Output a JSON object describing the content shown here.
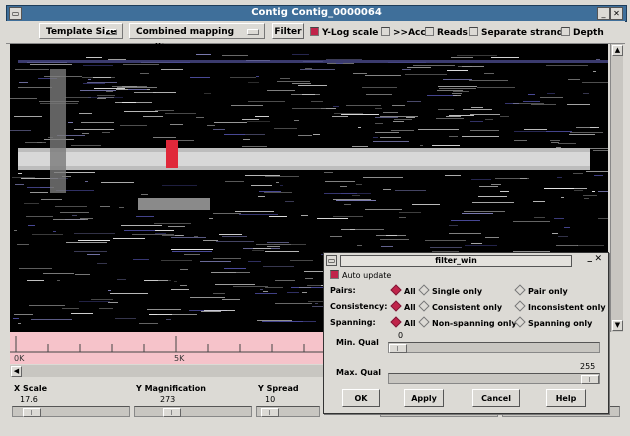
{
  "window": {
    "title": "Contig Contig_0000064"
  },
  "toolbar": {
    "template_size": "Template Size",
    "mapping_quality": "Combined mapping quality",
    "filter": "Filter",
    "ylog": "Y-Log scale",
    "acc": ">>Acc",
    "reads": "Reads",
    "separate_strands": "Separate strands",
    "depth": "Depth"
  },
  "ruler": {
    "labels": [
      "0K",
      "5K"
    ]
  },
  "scales": {
    "xscale": {
      "label": "X Scale",
      "value": "17.6"
    },
    "ymag": {
      "label": "Y Magnification",
      "value": "273"
    },
    "yspread": {
      "label": "Y Spread",
      "value": "10"
    }
  },
  "filter_win": {
    "title": "filter_win",
    "auto_update": "Auto update",
    "pairs": {
      "label": "Pairs:",
      "opts": [
        "All",
        "Single only",
        "Pair only"
      ]
    },
    "consistency": {
      "label": "Consistency:",
      "opts": [
        "All",
        "Consistent only",
        "Inconsistent only"
      ]
    },
    "spanning": {
      "label": "Spanning:",
      "opts": [
        "All",
        "Non-spanning only",
        "Spanning only"
      ]
    },
    "min_qual": {
      "label": "Min. Qual",
      "value": "0"
    },
    "max_qual": {
      "label": "Max. Qual",
      "value": "255"
    },
    "buttons": {
      "ok": "OK",
      "apply": "Apply",
      "cancel": "Cancel",
      "help": "Help"
    }
  },
  "colors": {
    "title_bar": "#3f6f9a",
    "accent": "#c0244a",
    "ruler": "#f6c3ca",
    "plot_bg": "#000000"
  }
}
